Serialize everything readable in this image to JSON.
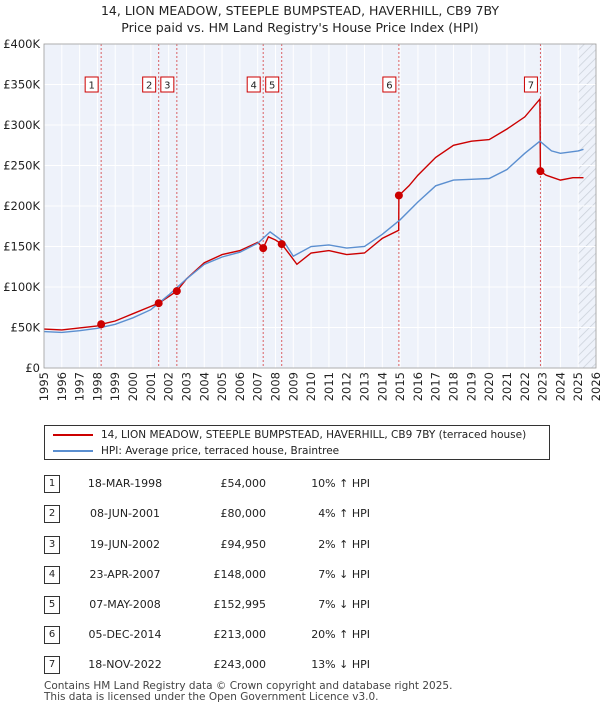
{
  "chart_data": {
    "type": "line",
    "title": "14, LION MEADOW, STEEPLE BUMPSTEAD, HAVERHILL, CB9 7BY",
    "subtitle": "Price paid vs. HM Land Registry's House Price Index (HPI)",
    "xlim": [
      1995,
      2026
    ],
    "ylim": [
      0,
      400000
    ],
    "x_ticks": [
      "1995",
      "1996",
      "1997",
      "1998",
      "1999",
      "2000",
      "2001",
      "2002",
      "2003",
      "2004",
      "2005",
      "2006",
      "2007",
      "2008",
      "2009",
      "2010",
      "2011",
      "2012",
      "2013",
      "2014",
      "2015",
      "2016",
      "2017",
      "2018",
      "2019",
      "2020",
      "2021",
      "2022",
      "2023",
      "2024",
      "2025",
      "2026"
    ],
    "y_ticks": [
      {
        "value": 0,
        "label": "£0"
      },
      {
        "value": 50000,
        "label": "£50K"
      },
      {
        "value": 100000,
        "label": "£100K"
      },
      {
        "value": 150000,
        "label": "£150K"
      },
      {
        "value": 200000,
        "label": "£200K"
      },
      {
        "value": 250000,
        "label": "£250K"
      },
      {
        "value": 300000,
        "label": "£300K"
      },
      {
        "value": 350000,
        "label": "£350K"
      },
      {
        "value": 400000,
        "label": "£400K"
      }
    ],
    "future_shade_from": 2025.0,
    "series": [
      {
        "name": "14, LION MEADOW, STEEPLE BUMPSTEAD, HAVERHILL, CB9 7BY (terraced house)",
        "color": "#cc0000",
        "points": [
          [
            1995.0,
            48000
          ],
          [
            1996.0,
            47000
          ],
          [
            1997.0,
            49500
          ],
          [
            1998.0,
            52000
          ],
          [
            1998.21,
            54000
          ],
          [
            1999.0,
            58000
          ],
          [
            2000.0,
            67000
          ],
          [
            2001.0,
            76000
          ],
          [
            2001.44,
            80000
          ],
          [
            2002.0,
            88000
          ],
          [
            2002.46,
            94950
          ],
          [
            2003.0,
            110000
          ],
          [
            2004.0,
            130000
          ],
          [
            2005.0,
            140000
          ],
          [
            2006.0,
            145000
          ],
          [
            2007.0,
            155000
          ],
          [
            2007.31,
            148000
          ],
          [
            2007.6,
            162000
          ],
          [
            2008.0,
            158000
          ],
          [
            2008.35,
            152995
          ],
          [
            2008.8,
            140000
          ],
          [
            2009.2,
            128000
          ],
          [
            2010.0,
            142000
          ],
          [
            2011.0,
            145000
          ],
          [
            2012.0,
            140000
          ],
          [
            2013.0,
            142000
          ],
          [
            2014.0,
            160000
          ],
          [
            2014.92,
            170000
          ],
          [
            2014.93,
            213000
          ],
          [
            2015.5,
            225000
          ],
          [
            2016.0,
            238000
          ],
          [
            2017.0,
            260000
          ],
          [
            2018.0,
            275000
          ],
          [
            2019.0,
            280000
          ],
          [
            2020.0,
            282000
          ],
          [
            2021.0,
            295000
          ],
          [
            2022.0,
            310000
          ],
          [
            2022.85,
            332000
          ],
          [
            2022.88,
            243000
          ],
          [
            2023.2,
            238000
          ],
          [
            2024.0,
            232000
          ],
          [
            2024.7,
            235000
          ],
          [
            2025.3,
            235000
          ]
        ]
      },
      {
        "name": "HPI: Average price, terraced house, Braintree",
        "color": "#5b8fd0",
        "points": [
          [
            1995.0,
            45000
          ],
          [
            1996.0,
            44000
          ],
          [
            1997.0,
            46000
          ],
          [
            1998.0,
            49000
          ],
          [
            1999.0,
            54000
          ],
          [
            2000.0,
            62000
          ],
          [
            2001.0,
            72000
          ],
          [
            2002.0,
            90000
          ],
          [
            2003.0,
            110000
          ],
          [
            2004.0,
            128000
          ],
          [
            2005.0,
            137000
          ],
          [
            2006.0,
            143000
          ],
          [
            2007.0,
            154000
          ],
          [
            2007.7,
            168000
          ],
          [
            2008.5,
            155000
          ],
          [
            2009.0,
            138000
          ],
          [
            2010.0,
            150000
          ],
          [
            2011.0,
            152000
          ],
          [
            2012.0,
            148000
          ],
          [
            2013.0,
            150000
          ],
          [
            2014.0,
            165000
          ],
          [
            2015.0,
            183000
          ],
          [
            2016.0,
            205000
          ],
          [
            2017.0,
            225000
          ],
          [
            2018.0,
            232000
          ],
          [
            2019.0,
            233000
          ],
          [
            2020.0,
            234000
          ],
          [
            2021.0,
            245000
          ],
          [
            2022.0,
            265000
          ],
          [
            2022.85,
            280000
          ],
          [
            2023.5,
            268000
          ],
          [
            2024.0,
            265000
          ],
          [
            2025.0,
            268000
          ],
          [
            2025.3,
            270000
          ]
        ]
      }
    ],
    "markers": [
      {
        "id": "1",
        "x": 1998.21,
        "y": 54000
      },
      {
        "id": "2",
        "x": 2001.44,
        "y": 80000
      },
      {
        "id": "3",
        "x": 2002.46,
        "y": 94950
      },
      {
        "id": "4",
        "x": 2007.31,
        "y": 148000
      },
      {
        "id": "5",
        "x": 2008.35,
        "y": 152995
      },
      {
        "id": "6",
        "x": 2014.93,
        "y": 213000
      },
      {
        "id": "7",
        "x": 2022.88,
        "y": 243000
      }
    ]
  },
  "legend": {
    "property_label": "14, LION MEADOW, STEEPLE BUMPSTEAD, HAVERHILL, CB9 7BY (terraced house)",
    "hpi_label": "HPI: Average price, terraced house, Braintree"
  },
  "transactions": [
    {
      "num": "1",
      "date": "18-MAR-1998",
      "price": "£54,000",
      "delta": "10% ↑ HPI"
    },
    {
      "num": "2",
      "date": "08-JUN-2001",
      "price": "£80,000",
      "delta": "4% ↑ HPI"
    },
    {
      "num": "3",
      "date": "19-JUN-2002",
      "price": "£94,950",
      "delta": "2% ↑ HPI"
    },
    {
      "num": "4",
      "date": "23-APR-2007",
      "price": "£148,000",
      "delta": "7% ↓ HPI"
    },
    {
      "num": "5",
      "date": "07-MAY-2008",
      "price": "£152,995",
      "delta": "7% ↓ HPI"
    },
    {
      "num": "6",
      "date": "05-DEC-2014",
      "price": "£213,000",
      "delta": "20% ↑ HPI"
    },
    {
      "num": "7",
      "date": "18-NOV-2022",
      "price": "£243,000",
      "delta": "13% ↓ HPI"
    }
  ],
  "footer": {
    "line1": "Contains HM Land Registry data © Crown copyright and database right 2025.",
    "line2": "This data is licensed under the Open Government Licence v3.0."
  }
}
